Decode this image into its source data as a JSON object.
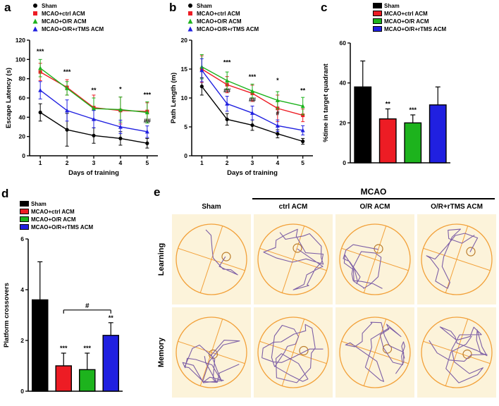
{
  "panels": {
    "a": "a",
    "b": "b",
    "c": "c",
    "d": "d",
    "e": "e"
  },
  "legend": {
    "series": [
      {
        "name": "Sham",
        "color": "#000000",
        "marker": "circle"
      },
      {
        "name": "MCAO+ctrl ACM",
        "color": "#ed1c24",
        "marker": "square"
      },
      {
        "name": "MCAO+O/R ACM",
        "color": "#1db31d",
        "marker": "triangle-up"
      },
      {
        "name": "MCAO+O/R+rTMS ACM",
        "color": "#2020e0",
        "marker": "triangle-up"
      }
    ]
  },
  "chart_data": [
    {
      "id": "a",
      "type": "line",
      "xlabel": "Days of training",
      "ylabel": "Escape Latency  (s)",
      "x": [
        1,
        2,
        3,
        4,
        5
      ],
      "xlim": [
        0.6,
        5.4
      ],
      "ylim": [
        0,
        120
      ],
      "yticks": [
        0,
        20,
        40,
        60,
        80,
        100,
        120
      ],
      "series": [
        {
          "name": "Sham",
          "color": "#000000",
          "marker": "circle",
          "values": [
            45,
            27,
            21,
            18,
            13
          ],
          "errors": [
            9,
            17,
            8,
            7,
            5
          ]
        },
        {
          "name": "MCAO+ctrl ACM",
          "color": "#ed1c24",
          "marker": "square",
          "values": [
            87,
            71,
            50,
            47,
            46
          ],
          "errors": [
            9,
            8,
            13,
            14,
            9
          ]
        },
        {
          "name": "MCAO+O/R ACM",
          "color": "#1db31d",
          "marker": "triangle-up",
          "values": [
            91,
            70,
            49,
            48,
            45
          ],
          "errors": [
            9,
            7,
            11,
            13,
            11
          ]
        },
        {
          "name": "MCAO+O/R+rTMS ACM",
          "color": "#2020e0",
          "marker": "triangle-up",
          "values": [
            68,
            47,
            38,
            30,
            25
          ],
          "errors": [
            9,
            11,
            9,
            7,
            6
          ]
        }
      ],
      "annotations": [
        {
          "x": 1,
          "y": 106,
          "text": "***"
        },
        {
          "x": 2,
          "y": 85,
          "text": "***"
        },
        {
          "x": 3,
          "y": 66,
          "text": "**"
        },
        {
          "x": 4,
          "y": 67,
          "text": "*"
        },
        {
          "x": 5,
          "y": 61,
          "text": "***"
        },
        {
          "x": 5,
          "y": 34,
          "text": "##"
        }
      ]
    },
    {
      "id": "b",
      "type": "line",
      "xlabel": "Days of  training",
      "ylabel": "Path Length (m)",
      "x": [
        1,
        2,
        3,
        4,
        5
      ],
      "xlim": [
        0.6,
        5.4
      ],
      "ylim": [
        0,
        20
      ],
      "yticks": [
        0,
        5,
        10,
        15,
        20
      ],
      "series": [
        {
          "name": "Sham",
          "color": "#000000",
          "marker": "circle",
          "values": [
            12,
            6.3,
            5.3,
            3.8,
            2.5
          ],
          "errors": [
            1.5,
            1,
            0.9,
            0.7,
            0.5
          ]
        },
        {
          "name": "MCAO+ctrl ACM",
          "color": "#ed1c24",
          "marker": "square",
          "values": [
            15,
            12.3,
            10.8,
            8.2,
            7
          ],
          "errors": [
            2.3,
            1.4,
            1.4,
            2.3,
            1.1
          ]
        },
        {
          "name": "MCAO+O/R ACM",
          "color": "#1db31d",
          "marker": "triangle-up",
          "values": [
            15.4,
            13,
            11.2,
            9.6,
            8.6
          ],
          "errors": [
            2.1,
            1.5,
            1.2,
            1.5,
            1.5
          ]
        },
        {
          "name": "MCAO+O/R+rTMS ACM",
          "color": "#2020e0",
          "marker": "triangle-up",
          "values": [
            14.8,
            9,
            7.4,
            5.2,
            4.4
          ],
          "errors": [
            2,
            1.3,
            1.2,
            1,
            0.8
          ]
        }
      ],
      "annotations": [
        {
          "x": 2,
          "y": 15.8,
          "text": "***"
        },
        {
          "x": 2,
          "y": 10.9,
          "text": "##"
        },
        {
          "x": 3,
          "y": 13.3,
          "text": "***"
        },
        {
          "x": 3,
          "y": 9.3,
          "text": "##"
        },
        {
          "x": 4,
          "y": 12.7,
          "text": "*"
        },
        {
          "x": 4,
          "y": 7,
          "text": "#"
        },
        {
          "x": 5,
          "y": 10.9,
          "text": "**"
        }
      ]
    },
    {
      "id": "c",
      "type": "bar",
      "ylabel": "%time in target quadrant",
      "ylim": [
        0,
        60
      ],
      "yticks": [
        0,
        20,
        40,
        60
      ],
      "categories": [
        "Sham",
        "MCAO+ctrl ACM",
        "MCAO+O/R ACM",
        "MCAO+O/R+rTMS ACM"
      ],
      "colors": [
        "#000000",
        "#ed1c24",
        "#1db31d",
        "#2020e0"
      ],
      "values": [
        38,
        22,
        20,
        29
      ],
      "errors": [
        13,
        5,
        4,
        9
      ],
      "bar_annotations": [
        "",
        "**",
        "***",
        ""
      ]
    },
    {
      "id": "d",
      "type": "bar",
      "ylabel": "Platform crossovers",
      "ylim": [
        0,
        6
      ],
      "yticks": [
        0,
        2,
        4,
        6
      ],
      "categories": [
        "Sham",
        "MCAO+ctrl ACM",
        "MCAO+O/R ACM",
        "MCAO+O/R+rTMS ACM"
      ],
      "colors": [
        "#000000",
        "#ed1c24",
        "#1db31d",
        "#2020e0"
      ],
      "values": [
        3.6,
        1.0,
        0.85,
        2.2
      ],
      "errors": [
        1.5,
        0.5,
        0.65,
        0.5
      ],
      "bar_annotations": [
        "",
        "***",
        "***",
        "**"
      ],
      "bracket": {
        "from": 1,
        "to": 3,
        "y": 3.2,
        "label": "#"
      }
    }
  ],
  "panel_e": {
    "group_header": "MCAO",
    "col_headers": [
      "Sham",
      "ctrl ACM",
      "O/R ACM",
      "O/R+rTMS ACM"
    ],
    "row_headers": [
      "Learning",
      "Memory"
    ],
    "colors": {
      "pool_bg": "#fcf3da",
      "pool_line": "#f2a13a",
      "track": "#7d5fa6",
      "platform": "#bc7e2c"
    },
    "cells": [
      {
        "row": "Learning",
        "col": "Sham",
        "seed": 3,
        "points": 7,
        "platform": [
          0.42,
          -0.08
        ]
      },
      {
        "row": "Learning",
        "col": "ctrl ACM",
        "seed": 17,
        "points": 26,
        "platform": [
          0.12,
          -0.32
        ]
      },
      {
        "row": "Learning",
        "col": "O/R ACM",
        "seed": 29,
        "points": 24,
        "platform": [
          0.1,
          -0.3
        ]
      },
      {
        "row": "Learning",
        "col": "O/R+rTMS ACM",
        "seed": 41,
        "points": 18,
        "platform": [
          0.4,
          -0.22
        ]
      },
      {
        "row": "Memory",
        "col": "Sham",
        "seed": 53,
        "points": 30,
        "platform": [
          0.05,
          0.05
        ]
      },
      {
        "row": "Memory",
        "col": "ctrl ACM",
        "seed": 67,
        "points": 34,
        "platform": [
          0.3,
          -0.05
        ]
      },
      {
        "row": "Memory",
        "col": "O/R ACM",
        "seed": 79,
        "points": 32,
        "platform": [
          0.35,
          -0.1
        ]
      },
      {
        "row": "Memory",
        "col": "O/R+rTMS ACM",
        "seed": 97,
        "points": 30,
        "platform": [
          0.3,
          0.05
        ]
      }
    ]
  }
}
